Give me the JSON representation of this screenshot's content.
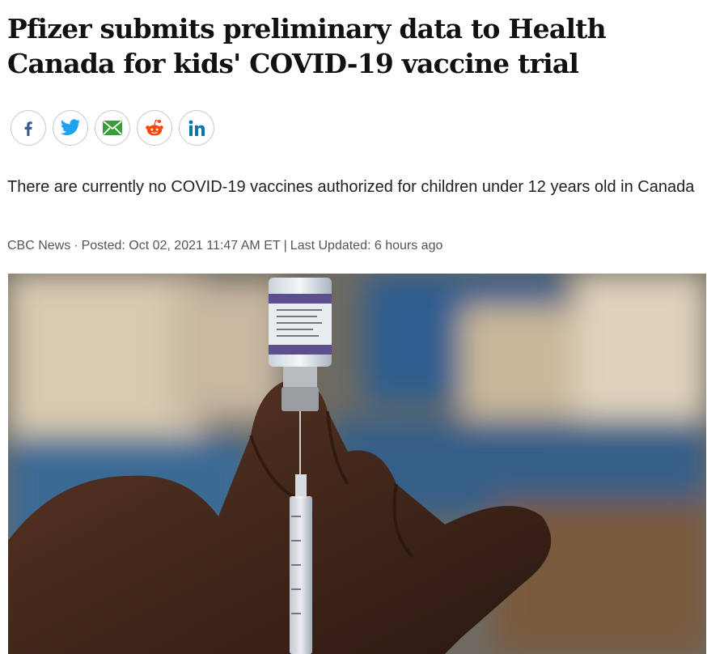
{
  "article": {
    "headline": "Pfizer submits preliminary data to Health Canada for kids' COVID-19 vaccine trial",
    "subheadline": "There are currently no COVID-19 vaccines authorized for children under 12 years old in Canada",
    "byline": [
      "CBC News",
      "·",
      "Posted: Oct 02, 2021 11:47 AM ET",
      "|",
      "Last Updated: 6 hours ago"
    ]
  }
}
